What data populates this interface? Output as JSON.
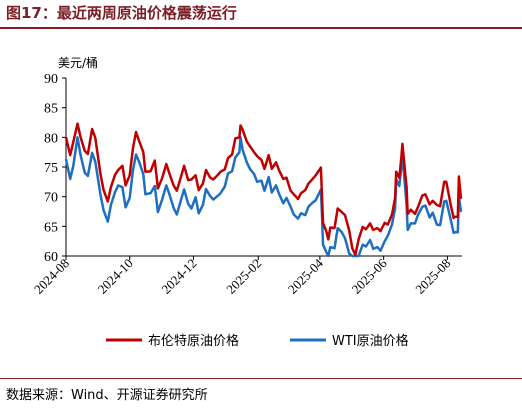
{
  "header": {
    "title": "图17：最近两周原油价格震荡运行"
  },
  "footer": {
    "source": "数据来源：Wind、开源证券研究所"
  },
  "chart_data": {
    "type": "line",
    "ylabel": "美元/桶",
    "ylim": [
      60,
      90
    ],
    "yticks": [
      60,
      65,
      70,
      75,
      80,
      85,
      90
    ],
    "xlim": [
      "2024-08-01",
      "2025-08-15"
    ],
    "xticks": [
      "2024-08",
      "2024-10",
      "2024-12",
      "2025-02",
      "2025-04",
      "2025-06",
      "2025-08"
    ],
    "grid": false,
    "legend_position": "bottom",
    "series": [
      {
        "name": "布伦特原油价格",
        "color": "#c00000",
        "points": [
          [
            "2024-08-01",
            80.0
          ],
          [
            "2024-08-05",
            77.0
          ],
          [
            "2024-08-08",
            79.2
          ],
          [
            "2024-08-12",
            82.3
          ],
          [
            "2024-08-15",
            80.0
          ],
          [
            "2024-08-19",
            77.7
          ],
          [
            "2024-08-22",
            77.2
          ],
          [
            "2024-08-26",
            81.4
          ],
          [
            "2024-08-29",
            79.9
          ],
          [
            "2024-09-03",
            73.8
          ],
          [
            "2024-09-06",
            71.1
          ],
          [
            "2024-09-10",
            69.2
          ],
          [
            "2024-09-13",
            71.6
          ],
          [
            "2024-09-17",
            73.7
          ],
          [
            "2024-09-20",
            74.5
          ],
          [
            "2024-09-24",
            75.2
          ],
          [
            "2024-09-27",
            71.9
          ],
          [
            "2024-10-01",
            73.6
          ],
          [
            "2024-10-04",
            78.1
          ],
          [
            "2024-10-07",
            80.9
          ],
          [
            "2024-10-10",
            79.4
          ],
          [
            "2024-10-14",
            77.5
          ],
          [
            "2024-10-16",
            74.2
          ],
          [
            "2024-10-21",
            74.3
          ],
          [
            "2024-10-25",
            76.1
          ],
          [
            "2024-10-28",
            71.4
          ],
          [
            "2024-11-01",
            73.1
          ],
          [
            "2024-11-05",
            75.5
          ],
          [
            "2024-11-08",
            73.9
          ],
          [
            "2024-11-12",
            71.9
          ],
          [
            "2024-11-15",
            71.0
          ],
          [
            "2024-11-19",
            73.3
          ],
          [
            "2024-11-22",
            75.2
          ],
          [
            "2024-11-26",
            72.8
          ],
          [
            "2024-11-29",
            72.9
          ],
          [
            "2024-12-03",
            73.6
          ],
          [
            "2024-12-06",
            71.1
          ],
          [
            "2024-12-10",
            72.2
          ],
          [
            "2024-12-13",
            74.5
          ],
          [
            "2024-12-17",
            73.2
          ],
          [
            "2024-12-20",
            72.9
          ],
          [
            "2024-12-24",
            73.6
          ],
          [
            "2024-12-27",
            74.2
          ],
          [
            "2024-12-31",
            74.6
          ],
          [
            "2025-01-03",
            76.5
          ],
          [
            "2025-01-07",
            77.1
          ],
          [
            "2025-01-10",
            79.8
          ],
          [
            "2025-01-14",
            80.0
          ],
          [
            "2025-01-15",
            82.0
          ],
          [
            "2025-01-17",
            81.3
          ],
          [
            "2025-01-21",
            79.3
          ],
          [
            "2025-01-24",
            78.5
          ],
          [
            "2025-01-28",
            77.5
          ],
          [
            "2025-01-31",
            76.8
          ],
          [
            "2025-02-04",
            76.2
          ],
          [
            "2025-02-07",
            74.7
          ],
          [
            "2025-02-11",
            77.0
          ],
          [
            "2025-02-14",
            74.7
          ],
          [
            "2025-02-18",
            75.8
          ],
          [
            "2025-02-21",
            74.4
          ],
          [
            "2025-02-25",
            73.0
          ],
          [
            "2025-02-28",
            73.2
          ],
          [
            "2025-03-04",
            71.0
          ],
          [
            "2025-03-07",
            70.4
          ],
          [
            "2025-03-11",
            69.6
          ],
          [
            "2025-03-14",
            70.6
          ],
          [
            "2025-03-18",
            71.1
          ],
          [
            "2025-03-21",
            72.2
          ],
          [
            "2025-03-25",
            73.0
          ],
          [
            "2025-03-28",
            73.6
          ],
          [
            "2025-04-02",
            74.9
          ],
          [
            "2025-04-03",
            70.1
          ],
          [
            "2025-04-04",
            65.6
          ],
          [
            "2025-04-07",
            64.2
          ],
          [
            "2025-04-09",
            62.8
          ],
          [
            "2025-04-11",
            64.8
          ],
          [
            "2025-04-15",
            64.7
          ],
          [
            "2025-04-18",
            68.0
          ],
          [
            "2025-04-22",
            67.4
          ],
          [
            "2025-04-25",
            66.9
          ],
          [
            "2025-04-29",
            64.3
          ],
          [
            "2025-05-02",
            61.3
          ],
          [
            "2025-05-05",
            60.2
          ],
          [
            "2025-05-08",
            62.8
          ],
          [
            "2025-05-12",
            64.9
          ],
          [
            "2025-05-15",
            64.5
          ],
          [
            "2025-05-19",
            65.5
          ],
          [
            "2025-05-22",
            64.4
          ],
          [
            "2025-05-26",
            64.7
          ],
          [
            "2025-05-29",
            64.2
          ],
          [
            "2025-06-02",
            65.6
          ],
          [
            "2025-06-05",
            65.3
          ],
          [
            "2025-06-09",
            67.0
          ],
          [
            "2025-06-12",
            69.8
          ],
          [
            "2025-06-13",
            74.2
          ],
          [
            "2025-06-16",
            73.2
          ],
          [
            "2025-06-18",
            76.7
          ],
          [
            "2025-06-19",
            78.9
          ],
          [
            "2025-06-20",
            77.0
          ],
          [
            "2025-06-23",
            71.5
          ],
          [
            "2025-06-24",
            67.1
          ],
          [
            "2025-06-27",
            67.8
          ],
          [
            "2025-07-01",
            67.1
          ],
          [
            "2025-07-04",
            68.3
          ],
          [
            "2025-07-08",
            70.2
          ],
          [
            "2025-07-11",
            70.4
          ],
          [
            "2025-07-15",
            68.7
          ],
          [
            "2025-07-18",
            69.3
          ],
          [
            "2025-07-22",
            68.6
          ],
          [
            "2025-07-25",
            68.4
          ],
          [
            "2025-07-29",
            72.5
          ],
          [
            "2025-07-31",
            72.5
          ],
          [
            "2025-08-04",
            68.8
          ],
          [
            "2025-08-07",
            66.4
          ],
          [
            "2025-08-08",
            66.6
          ],
          [
            "2025-08-11",
            66.6
          ],
          [
            "2025-08-12",
            73.4
          ],
          [
            "2025-08-14",
            69.7
          ]
        ]
      },
      {
        "name": "WTI原油价格",
        "color": "#1f6fc0",
        "points": [
          [
            "2024-08-01",
            76.3
          ],
          [
            "2024-08-05",
            73.0
          ],
          [
            "2024-08-08",
            75.2
          ],
          [
            "2024-08-12",
            80.0
          ],
          [
            "2024-08-15",
            77.0
          ],
          [
            "2024-08-19",
            74.0
          ],
          [
            "2024-08-22",
            73.5
          ],
          [
            "2024-08-26",
            77.4
          ],
          [
            "2024-08-29",
            75.9
          ],
          [
            "2024-09-03",
            70.3
          ],
          [
            "2024-09-06",
            67.7
          ],
          [
            "2024-09-10",
            65.8
          ],
          [
            "2024-09-13",
            68.6
          ],
          [
            "2024-09-17",
            70.8
          ],
          [
            "2024-09-20",
            71.9
          ],
          [
            "2024-09-24",
            71.6
          ],
          [
            "2024-09-27",
            68.2
          ],
          [
            "2024-10-01",
            69.8
          ],
          [
            "2024-10-04",
            74.4
          ],
          [
            "2024-10-07",
            77.1
          ],
          [
            "2024-10-10",
            75.9
          ],
          [
            "2024-10-14",
            73.8
          ],
          [
            "2024-10-16",
            70.4
          ],
          [
            "2024-10-21",
            70.6
          ],
          [
            "2024-10-25",
            71.8
          ],
          [
            "2024-10-28",
            67.4
          ],
          [
            "2024-11-01",
            69.5
          ],
          [
            "2024-11-05",
            71.9
          ],
          [
            "2024-11-08",
            70.4
          ],
          [
            "2024-11-12",
            68.1
          ],
          [
            "2024-11-15",
            67.0
          ],
          [
            "2024-11-19",
            69.4
          ],
          [
            "2024-11-22",
            71.2
          ],
          [
            "2024-11-26",
            68.8
          ],
          [
            "2024-11-29",
            68.0
          ],
          [
            "2024-12-03",
            69.9
          ],
          [
            "2024-12-06",
            67.2
          ],
          [
            "2024-12-10",
            68.6
          ],
          [
            "2024-12-13",
            71.3
          ],
          [
            "2024-12-17",
            70.1
          ],
          [
            "2024-12-20",
            69.5
          ],
          [
            "2024-12-24",
            70.1
          ],
          [
            "2024-12-27",
            70.6
          ],
          [
            "2024-12-31",
            71.7
          ],
          [
            "2025-01-03",
            73.9
          ],
          [
            "2025-01-07",
            74.3
          ],
          [
            "2025-01-10",
            76.6
          ],
          [
            "2025-01-14",
            77.5
          ],
          [
            "2025-01-15",
            80.0
          ],
          [
            "2025-01-17",
            77.9
          ],
          [
            "2025-01-21",
            75.8
          ],
          [
            "2025-01-24",
            74.7
          ],
          [
            "2025-01-28",
            73.8
          ],
          [
            "2025-01-31",
            72.5
          ],
          [
            "2025-02-04",
            72.7
          ],
          [
            "2025-02-07",
            71.0
          ],
          [
            "2025-02-11",
            73.3
          ],
          [
            "2025-02-14",
            70.7
          ],
          [
            "2025-02-18",
            71.9
          ],
          [
            "2025-02-21",
            70.4
          ],
          [
            "2025-02-25",
            68.9
          ],
          [
            "2025-02-28",
            69.8
          ],
          [
            "2025-03-04",
            68.3
          ],
          [
            "2025-03-07",
            67.0
          ],
          [
            "2025-03-11",
            66.3
          ],
          [
            "2025-03-14",
            67.2
          ],
          [
            "2025-03-18",
            66.9
          ],
          [
            "2025-03-21",
            68.3
          ],
          [
            "2025-03-25",
            69.0
          ],
          [
            "2025-03-28",
            69.4
          ],
          [
            "2025-04-02",
            71.2
          ],
          [
            "2025-04-03",
            66.9
          ],
          [
            "2025-04-04",
            61.9
          ],
          [
            "2025-04-07",
            60.7
          ],
          [
            "2025-04-09",
            59.6
          ],
          [
            "2025-04-11",
            61.5
          ],
          [
            "2025-04-15",
            61.3
          ],
          [
            "2025-04-18",
            64.7
          ],
          [
            "2025-04-22",
            64.0
          ],
          [
            "2025-04-25",
            63.0
          ],
          [
            "2025-04-29",
            60.4
          ],
          [
            "2025-05-02",
            58.3
          ],
          [
            "2025-05-05",
            57.2
          ],
          [
            "2025-05-08",
            59.9
          ],
          [
            "2025-05-12",
            61.9
          ],
          [
            "2025-05-15",
            61.6
          ],
          [
            "2025-05-19",
            62.7
          ],
          [
            "2025-05-22",
            61.2
          ],
          [
            "2025-05-26",
            61.5
          ],
          [
            "2025-05-29",
            60.9
          ],
          [
            "2025-06-02",
            62.5
          ],
          [
            "2025-06-05",
            63.4
          ],
          [
            "2025-06-09",
            65.3
          ],
          [
            "2025-06-12",
            68.0
          ],
          [
            "2025-06-13",
            72.9
          ],
          [
            "2025-06-16",
            71.8
          ],
          [
            "2025-06-18",
            75.1
          ],
          [
            "2025-06-19",
            77.0
          ],
          [
            "2025-06-20",
            74.9
          ],
          [
            "2025-06-23",
            68.5
          ],
          [
            "2025-06-24",
            64.4
          ],
          [
            "2025-06-27",
            65.5
          ],
          [
            "2025-07-01",
            65.5
          ],
          [
            "2025-07-04",
            67.0
          ],
          [
            "2025-07-08",
            68.3
          ],
          [
            "2025-07-11",
            68.5
          ],
          [
            "2025-07-15",
            66.5
          ],
          [
            "2025-07-18",
            67.3
          ],
          [
            "2025-07-22",
            65.3
          ],
          [
            "2025-07-25",
            65.2
          ],
          [
            "2025-07-29",
            69.2
          ],
          [
            "2025-07-31",
            69.3
          ],
          [
            "2025-08-04",
            66.3
          ],
          [
            "2025-08-07",
            63.9
          ],
          [
            "2025-08-08",
            64.0
          ],
          [
            "2025-08-11",
            64.0
          ],
          [
            "2025-08-12",
            70.0
          ],
          [
            "2025-08-14",
            67.5
          ]
        ]
      }
    ]
  }
}
